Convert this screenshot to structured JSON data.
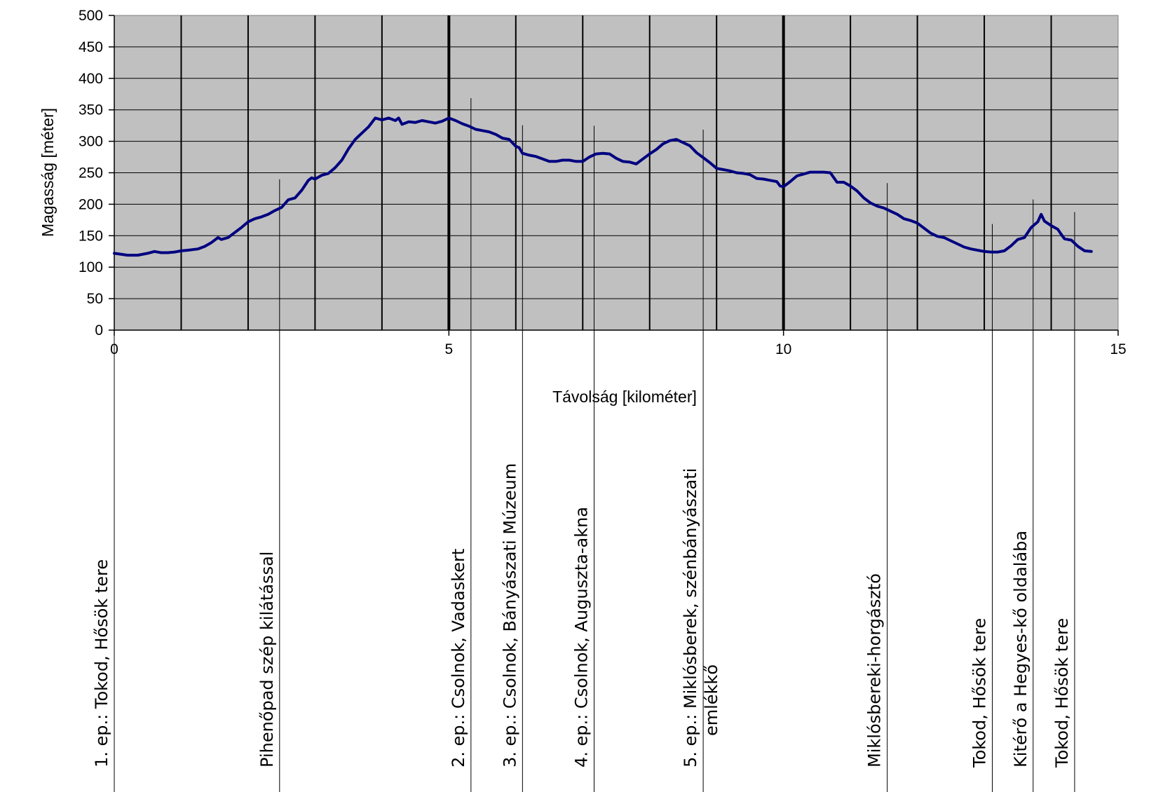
{
  "chart_data": {
    "type": "line",
    "title": "",
    "xlabel": "Távolság [kilométer]",
    "ylabel": "Magasság [méter]",
    "xlim": [
      0,
      15
    ],
    "ylim": [
      0,
      500
    ],
    "x_ticks": [
      "0",
      "5",
      "10",
      "15"
    ],
    "y_ticks": [
      "0",
      "50",
      "100",
      "150",
      "200",
      "250",
      "300",
      "350",
      "400",
      "450",
      "500"
    ],
    "grid": "vertical lines every 1 km",
    "plot_background": "#c0c0c0",
    "line_color": "#000080",
    "series": [
      {
        "name": "",
        "points": [
          [
            0.0,
            122
          ],
          [
            0.2,
            119
          ],
          [
            0.35,
            119
          ],
          [
            0.5,
            122
          ],
          [
            0.6,
            125
          ],
          [
            0.7,
            123
          ],
          [
            0.8,
            123
          ],
          [
            0.9,
            124
          ],
          [
            1.0,
            126
          ],
          [
            1.1,
            127
          ],
          [
            1.25,
            129
          ],
          [
            1.35,
            133
          ],
          [
            1.45,
            139
          ],
          [
            1.55,
            147
          ],
          [
            1.6,
            144
          ],
          [
            1.7,
            147
          ],
          [
            1.8,
            155
          ],
          [
            1.9,
            163
          ],
          [
            2.0,
            172
          ],
          [
            2.1,
            177
          ],
          [
            2.2,
            180
          ],
          [
            2.3,
            184
          ],
          [
            2.4,
            190
          ],
          [
            2.5,
            195
          ],
          [
            2.6,
            207
          ],
          [
            2.7,
            210
          ],
          [
            2.8,
            222
          ],
          [
            2.9,
            238
          ],
          [
            2.95,
            242
          ],
          [
            3.0,
            240
          ],
          [
            3.1,
            246
          ],
          [
            3.2,
            249
          ],
          [
            3.3,
            258
          ],
          [
            3.4,
            270
          ],
          [
            3.5,
            288
          ],
          [
            3.6,
            303
          ],
          [
            3.7,
            313
          ],
          [
            3.8,
            323
          ],
          [
            3.9,
            337
          ],
          [
            4.0,
            334
          ],
          [
            4.1,
            337
          ],
          [
            4.2,
            333
          ],
          [
            4.25,
            337
          ],
          [
            4.3,
            327
          ],
          [
            4.4,
            331
          ],
          [
            4.5,
            330
          ],
          [
            4.6,
            333
          ],
          [
            4.7,
            331
          ],
          [
            4.8,
            329
          ],
          [
            4.9,
            332
          ],
          [
            5.0,
            337
          ],
          [
            5.1,
            333
          ],
          [
            5.2,
            328
          ],
          [
            5.3,
            324
          ],
          [
            5.4,
            319
          ],
          [
            5.5,
            317
          ],
          [
            5.6,
            315
          ],
          [
            5.7,
            311
          ],
          [
            5.8,
            305
          ],
          [
            5.9,
            303
          ],
          [
            6.0,
            292
          ],
          [
            6.05,
            290
          ],
          [
            6.1,
            281
          ],
          [
            6.2,
            278
          ],
          [
            6.3,
            276
          ],
          [
            6.4,
            272
          ],
          [
            6.5,
            268
          ],
          [
            6.6,
            268
          ],
          [
            6.7,
            270
          ],
          [
            6.8,
            270
          ],
          [
            6.9,
            268
          ],
          [
            7.0,
            268
          ],
          [
            7.1,
            275
          ],
          [
            7.2,
            280
          ],
          [
            7.3,
            281
          ],
          [
            7.4,
            280
          ],
          [
            7.5,
            273
          ],
          [
            7.6,
            268
          ],
          [
            7.7,
            267
          ],
          [
            7.8,
            264
          ],
          [
            7.9,
            272
          ],
          [
            8.0,
            280
          ],
          [
            8.1,
            287
          ],
          [
            8.2,
            296
          ],
          [
            8.3,
            301
          ],
          [
            8.4,
            303
          ],
          [
            8.5,
            298
          ],
          [
            8.6,
            293
          ],
          [
            8.7,
            282
          ],
          [
            8.8,
            274
          ],
          [
            8.9,
            266
          ],
          [
            9.0,
            257
          ],
          [
            9.1,
            255
          ],
          [
            9.2,
            253
          ],
          [
            9.3,
            250
          ],
          [
            9.4,
            249
          ],
          [
            9.5,
            247
          ],
          [
            9.6,
            241
          ],
          [
            9.7,
            240
          ],
          [
            9.8,
            238
          ],
          [
            9.9,
            236
          ],
          [
            9.95,
            229
          ],
          [
            10.0,
            228
          ],
          [
            10.1,
            236
          ],
          [
            10.2,
            245
          ],
          [
            10.3,
            248
          ],
          [
            10.4,
            251
          ],
          [
            10.5,
            251
          ],
          [
            10.6,
            251
          ],
          [
            10.7,
            250
          ],
          [
            10.8,
            235
          ],
          [
            10.9,
            235
          ],
          [
            11.0,
            229
          ],
          [
            11.1,
            221
          ],
          [
            11.2,
            210
          ],
          [
            11.3,
            202
          ],
          [
            11.4,
            197
          ],
          [
            11.5,
            194
          ],
          [
            11.6,
            189
          ],
          [
            11.7,
            184
          ],
          [
            11.8,
            177
          ],
          [
            11.9,
            174
          ],
          [
            12.0,
            170
          ],
          [
            12.1,
            162
          ],
          [
            12.2,
            154
          ],
          [
            12.3,
            149
          ],
          [
            12.4,
            147
          ],
          [
            12.5,
            142
          ],
          [
            12.6,
            137
          ],
          [
            12.7,
            132
          ],
          [
            12.8,
            129
          ],
          [
            12.9,
            127
          ],
          [
            13.0,
            125
          ],
          [
            13.1,
            124
          ],
          [
            13.2,
            124
          ],
          [
            13.3,
            126
          ],
          [
            13.4,
            134
          ],
          [
            13.5,
            144
          ],
          [
            13.6,
            147
          ],
          [
            13.7,
            163
          ],
          [
            13.8,
            172
          ],
          [
            13.85,
            184
          ],
          [
            13.9,
            173
          ],
          [
            14.0,
            166
          ],
          [
            14.1,
            160
          ],
          [
            14.15,
            152
          ],
          [
            14.2,
            145
          ],
          [
            14.3,
            143
          ],
          [
            14.4,
            133
          ],
          [
            14.5,
            126
          ],
          [
            14.6,
            125
          ]
        ]
      }
    ],
    "markers": [
      {
        "x": 0.0,
        "label": "1. ep.: Tokod, Hősök tere"
      },
      {
        "x": 2.47,
        "label": "Pihenőpad szép kilátással"
      },
      {
        "x": 5.33,
        "label": "2. ep.: Csolnok, Vadaskert"
      },
      {
        "x": 6.1,
        "label": "3. ep.: Csolnok, Bányászati Múzeum"
      },
      {
        "x": 7.17,
        "label": "4. ep.: Csolnok, Auguszta-akna"
      },
      {
        "x": 8.8,
        "label": "5. ep.: Miklósberek, szénbányászati",
        "label2": "emlékkő"
      },
      {
        "x": 11.55,
        "label": "Miklósbereki-horgásztó"
      },
      {
        "x": 13.12,
        "label": "Tokod, Hősök tere"
      },
      {
        "x": 13.73,
        "label": "Kitérő a Hegyes-kő oldalába"
      },
      {
        "x": 14.35,
        "label": "Tokod, Hősök tere"
      }
    ]
  }
}
